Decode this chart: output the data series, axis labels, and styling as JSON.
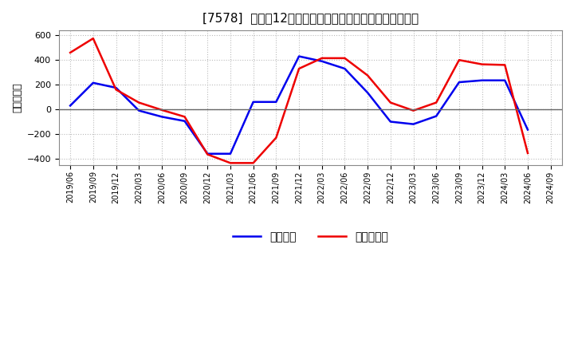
{
  "title": "[7578]  利益だ12か月移動合計の対前年同期増減額の推移",
  "ylabel": "（百万円）",
  "legend_blue": "経常利益",
  "legend_red": "当期純利益",
  "x_labels": [
    "2019/06",
    "2019/09",
    "2019/12",
    "2020/03",
    "2020/06",
    "2020/09",
    "2020/12",
    "2021/03",
    "2021/06",
    "2021/09",
    "2021/12",
    "2022/03",
    "2022/06",
    "2022/09",
    "2022/12",
    "2023/03",
    "2023/06",
    "2023/09",
    "2023/12",
    "2024/03",
    "2024/06",
    "2024/09"
  ],
  "blue_values": [
    30,
    215,
    175,
    -10,
    -60,
    -95,
    -360,
    -360,
    60,
    60,
    430,
    390,
    330,
    135,
    -100,
    -120,
    -55,
    220,
    235,
    235,
    -165,
    null
  ],
  "red_values": [
    460,
    575,
    160,
    55,
    -5,
    -60,
    -365,
    -435,
    -435,
    -230,
    330,
    415,
    415,
    275,
    55,
    -10,
    55,
    400,
    365,
    360,
    -355,
    null
  ],
  "ylim": [
    -450,
    640
  ],
  "yticks": [
    -400,
    -200,
    0,
    200,
    400,
    600
  ],
  "blue_color": "#0000ee",
  "red_color": "#ee0000",
  "grid_color": "#bbbbbb",
  "bg_color": "#ffffff"
}
